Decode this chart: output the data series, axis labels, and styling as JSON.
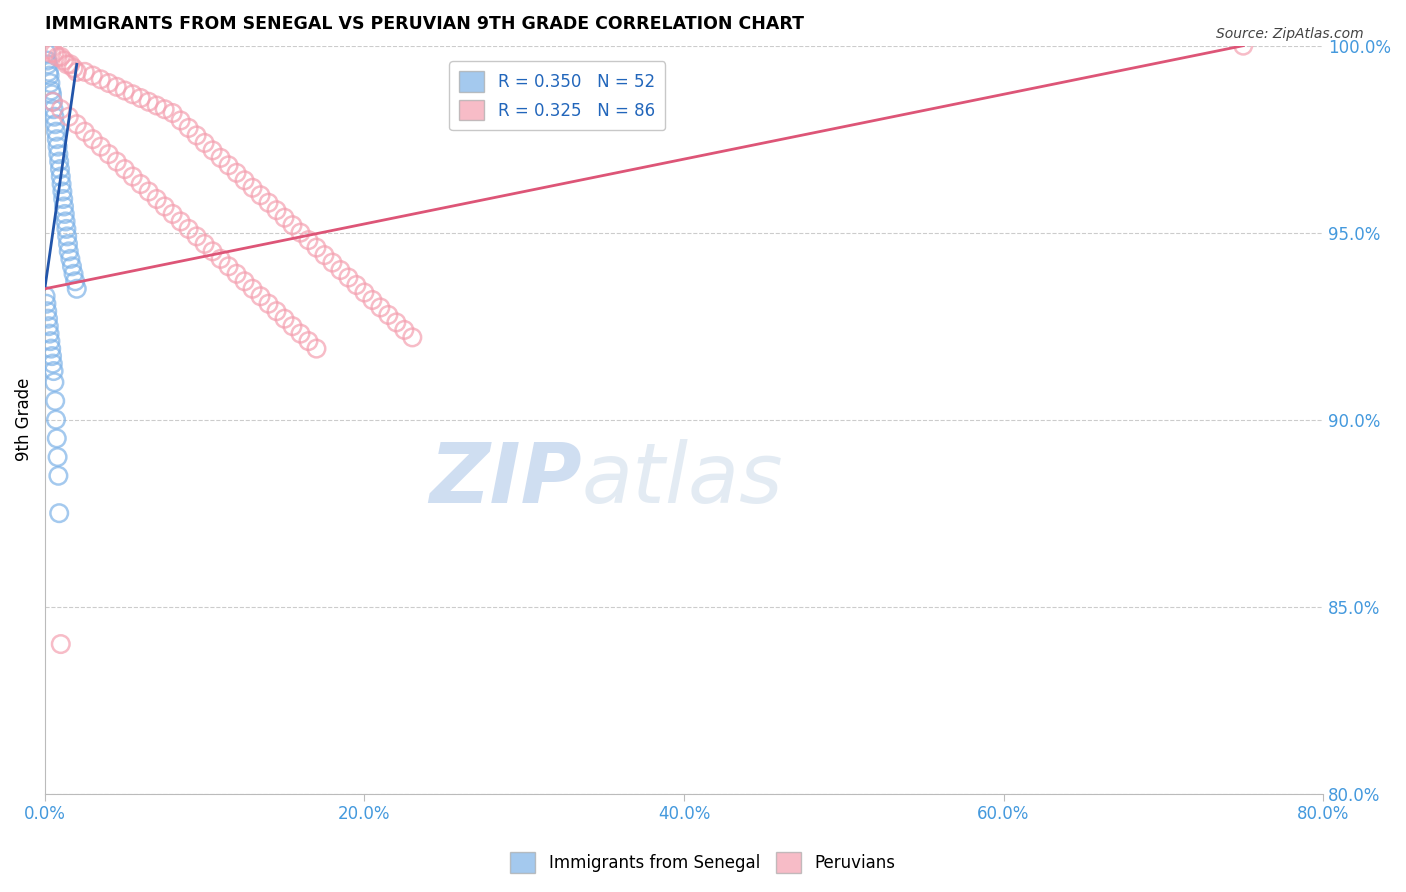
{
  "title": "IMMIGRANTS FROM SENEGAL VS PERUVIAN 9TH GRADE CORRELATION CHART",
  "source": "Source: ZipAtlas.com",
  "ylabel": "9th Grade",
  "xlim": [
    0.0,
    80.0
  ],
  "ylim": [
    80.0,
    100.0
  ],
  "xticks": [
    0.0,
    20.0,
    40.0,
    60.0,
    80.0
  ],
  "yticks": [
    80.0,
    85.0,
    90.0,
    95.0,
    100.0
  ],
  "legend_blue_r": "R = 0.350",
  "legend_blue_n": "N = 52",
  "legend_pink_r": "R = 0.325",
  "legend_pink_n": "N = 86",
  "blue_color": "#7EB3E8",
  "pink_color": "#F4A0B0",
  "blue_label": "Immigrants from Senegal",
  "pink_label": "Peruvians",
  "watermark_zip": "ZIP",
  "watermark_atlas": "atlas",
  "blue_scatter_x": [
    0.1,
    0.15,
    0.2,
    0.25,
    0.3,
    0.35,
    0.4,
    0.45,
    0.5,
    0.55,
    0.6,
    0.65,
    0.7,
    0.75,
    0.8,
    0.85,
    0.9,
    0.95,
    1.0,
    1.05,
    1.1,
    1.15,
    1.2,
    1.25,
    1.3,
    1.35,
    1.4,
    1.45,
    1.5,
    1.6,
    1.7,
    1.8,
    1.9,
    2.0,
    0.05,
    0.1,
    0.15,
    0.2,
    0.25,
    0.3,
    0.35,
    0.4,
    0.45,
    0.5,
    0.55,
    0.6,
    0.65,
    0.7,
    0.75,
    0.8,
    0.85,
    0.9
  ],
  "blue_scatter_y": [
    99.8,
    99.6,
    99.5,
    99.3,
    99.2,
    99.0,
    98.8,
    98.7,
    98.5,
    98.3,
    98.1,
    97.9,
    97.7,
    97.5,
    97.3,
    97.1,
    96.9,
    96.7,
    96.5,
    96.3,
    96.1,
    95.9,
    95.7,
    95.5,
    95.3,
    95.1,
    94.9,
    94.7,
    94.5,
    94.3,
    94.1,
    93.9,
    93.7,
    93.5,
    93.3,
    93.1,
    92.9,
    92.7,
    92.5,
    92.3,
    92.1,
    91.9,
    91.7,
    91.5,
    91.3,
    91.0,
    90.5,
    90.0,
    89.5,
    89.0,
    88.5,
    87.5
  ],
  "pink_scatter_x": [
    0.2,
    0.4,
    0.6,
    0.8,
    1.0,
    1.2,
    1.4,
    1.6,
    1.8,
    2.0,
    2.5,
    3.0,
    3.5,
    4.0,
    4.5,
    5.0,
    5.5,
    6.0,
    6.5,
    7.0,
    7.5,
    8.0,
    8.5,
    9.0,
    9.5,
    10.0,
    10.5,
    11.0,
    11.5,
    12.0,
    12.5,
    13.0,
    13.5,
    14.0,
    14.5,
    15.0,
    15.5,
    16.0,
    16.5,
    17.0,
    17.5,
    18.0,
    18.5,
    19.0,
    19.5,
    20.0,
    20.5,
    21.0,
    21.5,
    22.0,
    22.5,
    23.0,
    0.5,
    1.0,
    1.5,
    2.0,
    2.5,
    3.0,
    3.5,
    4.0,
    4.5,
    5.0,
    5.5,
    6.0,
    6.5,
    7.0,
    7.5,
    8.0,
    8.5,
    9.0,
    9.5,
    10.0,
    10.5,
    11.0,
    11.5,
    12.0,
    12.5,
    13.0,
    13.5,
    14.0,
    14.5,
    15.0,
    15.5,
    16.0,
    16.5,
    17.0
  ],
  "pink_scatter_y": [
    99.9,
    99.8,
    99.8,
    99.7,
    99.7,
    99.6,
    99.5,
    99.5,
    99.4,
    99.3,
    99.3,
    99.2,
    99.1,
    99.0,
    98.9,
    98.8,
    98.7,
    98.6,
    98.5,
    98.4,
    98.3,
    98.2,
    98.0,
    97.8,
    97.6,
    97.4,
    97.2,
    97.0,
    96.8,
    96.6,
    96.4,
    96.2,
    96.0,
    95.8,
    95.6,
    95.4,
    95.2,
    95.0,
    94.8,
    94.6,
    94.4,
    94.2,
    94.0,
    93.8,
    93.6,
    93.4,
    93.2,
    93.0,
    92.8,
    92.6,
    92.4,
    92.2,
    98.5,
    98.3,
    98.1,
    97.9,
    97.7,
    97.5,
    97.3,
    97.1,
    96.9,
    96.7,
    96.5,
    96.3,
    96.1,
    95.9,
    95.7,
    95.5,
    95.3,
    95.1,
    94.9,
    94.7,
    94.5,
    94.3,
    94.1,
    93.9,
    93.7,
    93.5,
    93.3,
    93.1,
    92.9,
    92.7,
    92.5,
    92.3,
    92.1,
    91.9
  ],
  "blue_trend_x": [
    0.0,
    2.0
  ],
  "blue_trend_y": [
    93.5,
    99.5
  ],
  "pink_trend_x": [
    0.0,
    75.0
  ],
  "pink_trend_y": [
    93.5,
    100.0
  ],
  "outlier_pink_x": [
    75.0
  ],
  "outlier_pink_y": [
    100.0
  ],
  "low_pink_x": [
    1.0
  ],
  "low_pink_y": [
    84.0
  ]
}
